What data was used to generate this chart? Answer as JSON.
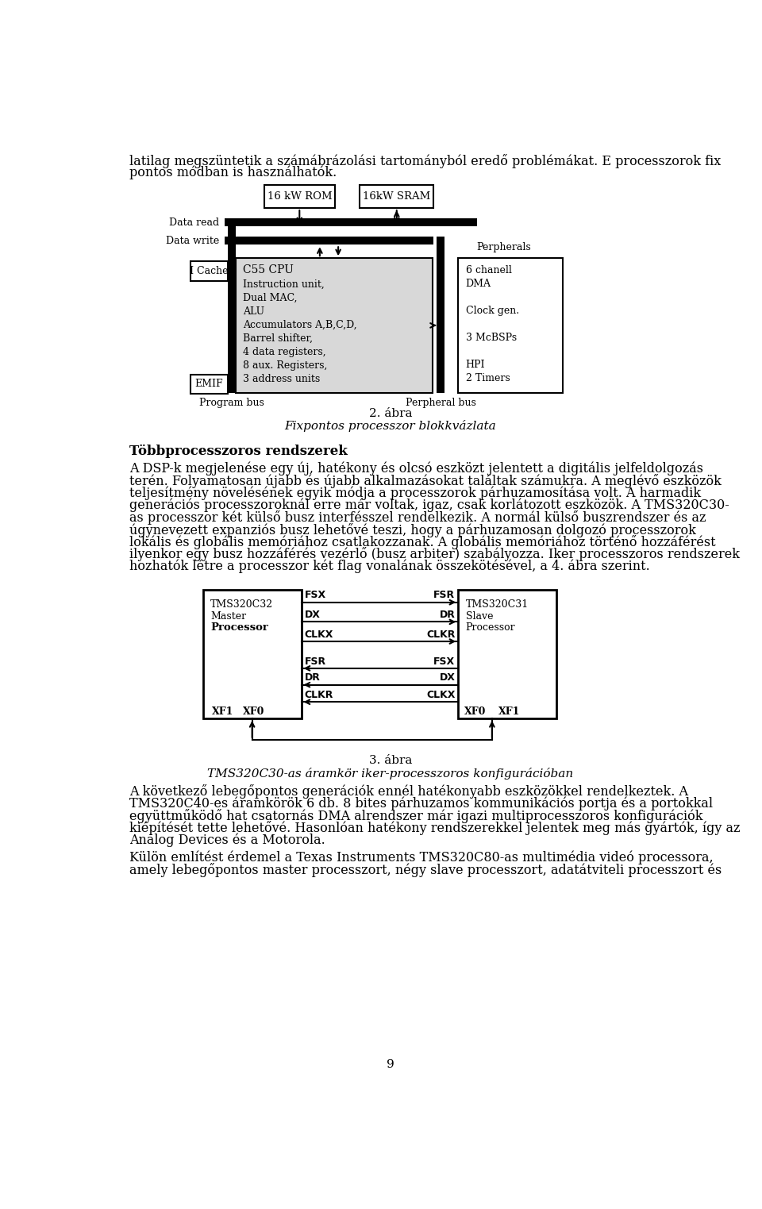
{
  "page_bg": "#ffffff",
  "top_text_line1": "latilag megszüntetik a számábrázolási tartományból eredő problémákat. E processzorok fix",
  "top_text_line2": "pontos módban is használhatók.",
  "fig2_title": "2. ábra",
  "fig2_subtitle": "Fixpontos processzor blokkvázlata",
  "section_title": "Többprocesszoros rendszerek",
  "para1_lines": [
    "A DSP-k megjelenése egy új, hatékony és olcsó eszközt jelentett a digitális jelfeldolgozás",
    "terén. Folyamatosan újabb és újabb alkalmazásokat találtak számukra. A meglévő eszközök",
    "teljesítmény növelésének egyik módja a processzorok párhuzamosítása volt. A harmadik",
    "generációs processzoroknál erre már voltak, igaz, csak korlátozott eszközök. A TMS320C30-",
    "as processzor két külső busz interfésszel rendelkezik. A normál külső buszrendszer és az",
    "úgynevezett expanziós busz lehetővé teszi, hogy a párhuzamosan dolgozó processzorok",
    "lokális és globális memóriához csatlakozzanak. A globális memóriához történő hozzáférést",
    "ilyenkor egy busz hozzáférés vezérlő (busz arbiter) szabályozza. Iker processzoros rendszerek",
    "hozhatók létre a processzor két flag vonalának összekötésével, a 4. ábra szerint."
  ],
  "fig3_title": "3. ábra",
  "fig3_subtitle": "TMS320C30-as áramkör iker-processzoros konfigurációban",
  "para2_lines": [
    "A következő lebegőpontos generációk ennél hatékonyabb eszközökkel rendelkeztek. A",
    "TMS320C40-es áramkörök 6 db. 8 bites párhuzamos kommunikációs portja és a portokkal",
    "együttműködő hat csatornás DMA alrendszer már igazi multiprocesszoros konfigurációk",
    "kiépítését tette lehetővé. Hasonlóan hatékony rendszerekkel jelentek meg más gyártók, így az",
    "Analog Devices és a Motorola."
  ],
  "para3_lines": [
    "Külön említést érdemel a Texas Instruments TMS320C80-as multimédia videó processora,",
    "amely lebegőpontos master processzort, négy slave processzort, adatátviteli processzort és"
  ],
  "page_num": "9",
  "cpu_details": [
    "Instruction unit,",
    "Dual MAC,",
    "ALU",
    "Accumulators A,B,C,D,",
    "Barrel shifter,",
    "4 data registers,",
    "8 aux. Registers,",
    "3 address units"
  ],
  "periph_items": [
    "6 chanell",
    "DMA",
    "",
    "Clock gen.",
    "",
    "3 McBSPs",
    "",
    "HPI",
    "2 Timers"
  ]
}
